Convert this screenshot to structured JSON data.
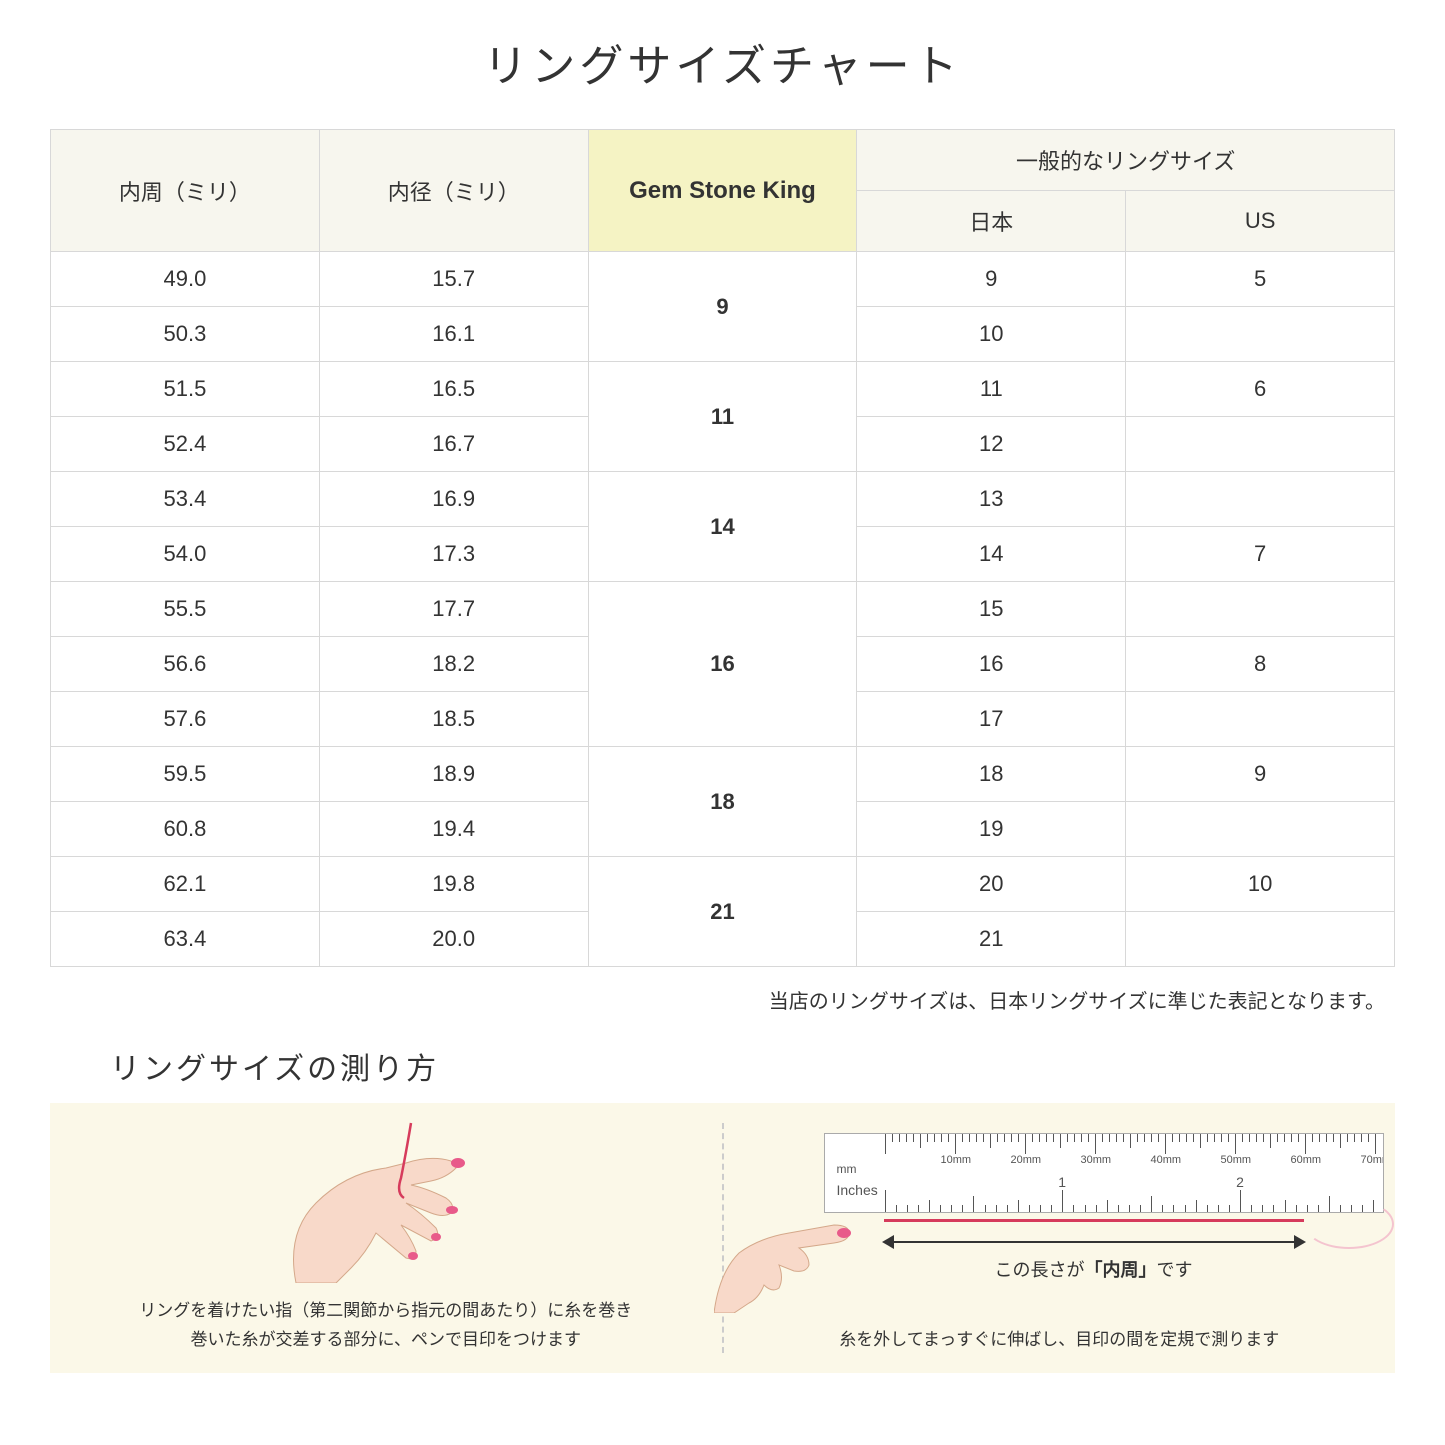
{
  "title": "リングサイズチャート",
  "table": {
    "headers": {
      "col1": "内周（ミリ）",
      "col2": "内径（ミリ）",
      "col3": "Gem Stone King",
      "col4_group": "一般的なリングサイズ",
      "col4a": "日本",
      "col4b": "US"
    },
    "groups": [
      {
        "gsk": "9",
        "rows": [
          {
            "c": "49.0",
            "d": "15.7",
            "jp": "9",
            "us": "5"
          },
          {
            "c": "50.3",
            "d": "16.1",
            "jp": "10",
            "us": ""
          }
        ]
      },
      {
        "gsk": "11",
        "rows": [
          {
            "c": "51.5",
            "d": "16.5",
            "jp": "11",
            "us": "6"
          },
          {
            "c": "52.4",
            "d": "16.7",
            "jp": "12",
            "us": ""
          }
        ]
      },
      {
        "gsk": "14",
        "rows": [
          {
            "c": "53.4",
            "d": "16.9",
            "jp": "13",
            "us": ""
          },
          {
            "c": "54.0",
            "d": "17.3",
            "jp": "14",
            "us": "7"
          }
        ]
      },
      {
        "gsk": "16",
        "rows": [
          {
            "c": "55.5",
            "d": "17.7",
            "jp": "15",
            "us": ""
          },
          {
            "c": "56.6",
            "d": "18.2",
            "jp": "16",
            "us": "8"
          },
          {
            "c": "57.6",
            "d": "18.5",
            "jp": "17",
            "us": ""
          }
        ]
      },
      {
        "gsk": "18",
        "rows": [
          {
            "c": "59.5",
            "d": "18.9",
            "jp": "18",
            "us": "9"
          },
          {
            "c": "60.8",
            "d": "19.4",
            "jp": "19",
            "us": ""
          }
        ]
      },
      {
        "gsk": "21",
        "rows": [
          {
            "c": "62.1",
            "d": "19.8",
            "jp": "20",
            "us": "10"
          },
          {
            "c": "63.4",
            "d": "20.0",
            "jp": "21",
            "us": ""
          }
        ]
      }
    ]
  },
  "note": "当店のリングサイズは、日本リングサイズに準じた表記となります。",
  "howto_title": "リングサイズの測り方",
  "howto": {
    "left_caption_l1": "リングを着けたい指（第二関節から指元の間あたり）に糸を巻き",
    "left_caption_l2": "巻いた糸が交差する部分に、ペンで目印をつけます",
    "right_arrow_text_pre": "この長さが",
    "right_arrow_text_bold": "「内周」",
    "right_arrow_text_post": "です",
    "right_caption": "糸を外してまっすぐに伸ばし、目印の間を定規で測ります",
    "ruler_mm_label": "mm",
    "ruler_in_label": "Inches",
    "ruler_mm_marks": [
      "10mm",
      "20mm",
      "30mm",
      "40mm",
      "50mm",
      "60mm",
      "70mm"
    ],
    "ruler_in_marks": [
      "1",
      "2"
    ]
  },
  "colors": {
    "header_bg": "#f7f6ee",
    "highlight_bg": "#f5f3c4",
    "border": "#d8d8d8",
    "howto_bg": "#fbf8e8",
    "thread": "#d63b5c",
    "skin": "#f8d9c9",
    "nail": "#e85a8a"
  }
}
